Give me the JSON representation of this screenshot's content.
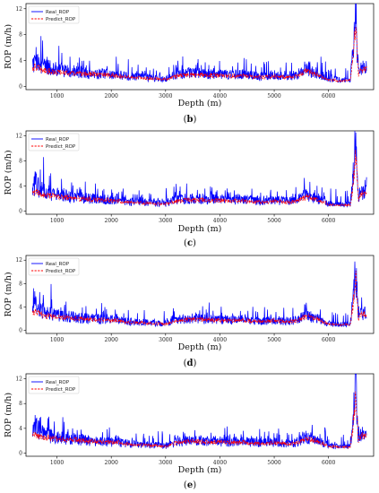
{
  "chart_data": [
    {
      "type": "line",
      "panel": "(b)",
      "xlabel": "Depth (m)",
      "ylabel": "ROP (m/h)",
      "xlim": [
        430,
        6830
      ],
      "ylim": [
        -0.5,
        12.8
      ],
      "xticks": [
        1000,
        2000,
        3000,
        4000,
        5000,
        6000
      ],
      "yticks": [
        0,
        4,
        8,
        12
      ],
      "grid": false,
      "legend_position": "top-left",
      "series": [
        {
          "name": "Real_ROP",
          "color": "#0000ff",
          "style": "solid",
          "x": [
            550,
            600,
            700,
            800,
            900,
            1000,
            1200,
            1400,
            1600,
            1800,
            2000,
            2100,
            2200,
            2400,
            2600,
            2800,
            3000,
            3200,
            3400,
            3600,
            3800,
            4000,
            4200,
            4400,
            4600,
            4800,
            5000,
            5200,
            5400,
            5600,
            5800,
            6000,
            6200,
            6400,
            6450,
            6500,
            6550,
            6600,
            6700
          ],
          "y": [
            3.0,
            4.5,
            3.5,
            3.0,
            2.8,
            2.6,
            2.4,
            2.2,
            2.0,
            1.9,
            1.8,
            2.0,
            1.6,
            1.5,
            1.4,
            1.3,
            1.2,
            1.8,
            2.0,
            2.0,
            1.9,
            1.9,
            1.8,
            1.9,
            1.7,
            1.6,
            1.8,
            1.6,
            1.7,
            2.6,
            2.0,
            1.2,
            1.0,
            1.1,
            5.0,
            11.0,
            2.0,
            3.0,
            3.0
          ]
        },
        {
          "name": "Predict_ROP",
          "color": "#ff0000",
          "style": "dashed",
          "x": [
            550,
            600,
            700,
            800,
            900,
            1000,
            1200,
            1400,
            1600,
            1800,
            2000,
            2100,
            2200,
            2400,
            2600,
            2800,
            3000,
            3200,
            3400,
            3600,
            3800,
            4000,
            4200,
            4400,
            4600,
            4800,
            5000,
            5200,
            5400,
            5600,
            5800,
            6000,
            6200,
            6400,
            6450,
            6500,
            6550,
            6600,
            6700
          ],
          "y": [
            2.8,
            3.0,
            2.6,
            2.4,
            2.3,
            2.2,
            2.1,
            2.0,
            1.9,
            1.8,
            1.7,
            1.7,
            1.5,
            1.4,
            1.3,
            1.2,
            1.1,
            1.6,
            1.8,
            1.8,
            1.7,
            1.7,
            1.6,
            1.7,
            1.5,
            1.4,
            1.6,
            1.4,
            1.5,
            2.4,
            1.8,
            1.0,
            0.9,
            1.0,
            4.0,
            10.0,
            1.8,
            2.6,
            2.6
          ]
        }
      ]
    },
    {
      "type": "line",
      "panel": "(c)",
      "xlabel": "Depth (m)",
      "ylabel": "ROP (m/h)",
      "xlim": [
        430,
        6830
      ],
      "ylim": [
        -0.5,
        12.8
      ],
      "xticks": [
        1000,
        2000,
        3000,
        4000,
        5000,
        6000
      ],
      "yticks": [
        0,
        4,
        8,
        12
      ],
      "grid": false,
      "legend_position": "top-left",
      "series": [
        {
          "name": "Real_ROP",
          "color": "#0000ff",
          "style": "solid",
          "x": [
            550,
            600,
            700,
            800,
            900,
            1000,
            1200,
            1400,
            1600,
            1800,
            2000,
            2100,
            2200,
            2400,
            2600,
            2800,
            3000,
            3200,
            3400,
            3600,
            3800,
            4000,
            4200,
            4400,
            4600,
            4800,
            5000,
            5200,
            5400,
            5600,
            5800,
            6000,
            6200,
            6400,
            6450,
            6500,
            6550,
            6600,
            6700
          ],
          "y": [
            3.0,
            4.5,
            3.5,
            3.0,
            2.8,
            2.6,
            2.4,
            2.2,
            2.0,
            1.9,
            1.8,
            2.0,
            1.6,
            1.5,
            1.4,
            1.3,
            1.2,
            1.8,
            2.0,
            2.0,
            1.9,
            1.9,
            1.8,
            1.9,
            1.7,
            1.6,
            1.8,
            1.6,
            1.7,
            2.6,
            2.0,
            1.2,
            1.0,
            1.1,
            5.0,
            11.0,
            2.0,
            3.0,
            3.0
          ]
        },
        {
          "name": "Predict_ROP",
          "color": "#ff0000",
          "style": "dashed",
          "x": [
            550,
            600,
            700,
            800,
            900,
            1000,
            1200,
            1400,
            1600,
            1800,
            2000,
            2100,
            2200,
            2400,
            2600,
            2800,
            3000,
            3200,
            3400,
            3600,
            3800,
            4000,
            4200,
            4400,
            4600,
            4800,
            5000,
            5200,
            5400,
            5600,
            5800,
            6000,
            6200,
            6400,
            6450,
            6500,
            6550,
            6600,
            6700
          ],
          "y": [
            2.7,
            3.1,
            2.7,
            2.5,
            2.4,
            2.3,
            2.2,
            2.0,
            1.9,
            1.8,
            1.7,
            1.8,
            1.5,
            1.4,
            1.3,
            1.2,
            1.1,
            1.6,
            1.8,
            1.8,
            1.7,
            1.7,
            1.6,
            1.7,
            1.5,
            1.4,
            1.6,
            1.4,
            1.5,
            2.3,
            1.8,
            1.1,
            0.9,
            1.0,
            3.8,
            9.5,
            1.8,
            2.7,
            2.7
          ]
        }
      ]
    },
    {
      "type": "line",
      "panel": "(d)",
      "xlabel": "Depth (m)",
      "ylabel": "ROP (m/h)",
      "xlim": [
        430,
        6830
      ],
      "ylim": [
        -0.5,
        12.8
      ],
      "xticks": [
        1000,
        2000,
        3000,
        4000,
        5000,
        6000
      ],
      "yticks": [
        0,
        4,
        8,
        12
      ],
      "grid": false,
      "legend_position": "top-left",
      "series": [
        {
          "name": "Real_ROP",
          "color": "#0000ff",
          "style": "solid",
          "x": [
            550,
            600,
            700,
            800,
            900,
            1000,
            1200,
            1400,
            1600,
            1800,
            2000,
            2100,
            2200,
            2400,
            2600,
            2800,
            3000,
            3200,
            3400,
            3600,
            3800,
            4000,
            4200,
            4400,
            4600,
            4800,
            5000,
            5200,
            5400,
            5600,
            5800,
            6000,
            6200,
            6400,
            6450,
            6500,
            6550,
            6600,
            6700
          ],
          "y": [
            3.0,
            4.5,
            3.5,
            3.0,
            2.8,
            2.6,
            2.4,
            2.2,
            2.0,
            1.9,
            1.8,
            2.0,
            1.6,
            1.5,
            1.4,
            1.3,
            1.2,
            1.8,
            2.0,
            2.0,
            1.9,
            1.9,
            1.8,
            1.9,
            1.7,
            1.6,
            1.8,
            1.6,
            1.7,
            2.6,
            2.0,
            1.2,
            1.0,
            1.1,
            5.0,
            11.0,
            2.0,
            3.0,
            3.0
          ]
        },
        {
          "name": "Predict_ROP",
          "color": "#ff0000",
          "style": "dashed",
          "x": [
            550,
            600,
            700,
            800,
            900,
            1000,
            1200,
            1400,
            1600,
            1800,
            2000,
            2100,
            2200,
            2400,
            2600,
            2800,
            3000,
            3200,
            3400,
            3600,
            3800,
            4000,
            4200,
            4400,
            4600,
            4800,
            5000,
            5200,
            5400,
            5600,
            5800,
            6000,
            6200,
            6400,
            6450,
            6500,
            6550,
            6600,
            6700
          ],
          "y": [
            2.9,
            3.2,
            2.8,
            2.5,
            2.4,
            2.3,
            2.2,
            2.1,
            1.9,
            1.8,
            1.7,
            1.8,
            1.5,
            1.4,
            1.3,
            1.2,
            1.1,
            1.7,
            1.9,
            1.9,
            1.8,
            1.8,
            1.7,
            1.8,
            1.6,
            1.5,
            1.7,
            1.5,
            1.6,
            2.5,
            1.9,
            1.1,
            1.0,
            1.0,
            4.2,
            10.0,
            1.9,
            2.8,
            2.8
          ]
        }
      ]
    },
    {
      "type": "line",
      "panel": "(e)",
      "xlabel": "Depth (m)",
      "ylabel": "ROP (m/h)",
      "xlim": [
        430,
        6830
      ],
      "ylim": [
        -0.5,
        12.8
      ],
      "xticks": [
        1000,
        2000,
        3000,
        4000,
        5000,
        6000
      ],
      "yticks": [
        0,
        4,
        8,
        12
      ],
      "grid": false,
      "legend_position": "top-left",
      "series": [
        {
          "name": "Real_ROP",
          "color": "#0000ff",
          "style": "solid",
          "x": [
            550,
            600,
            700,
            800,
            900,
            1000,
            1200,
            1400,
            1600,
            1800,
            2000,
            2100,
            2200,
            2400,
            2600,
            2800,
            3000,
            3200,
            3400,
            3600,
            3800,
            4000,
            4200,
            4400,
            4600,
            4800,
            5000,
            5200,
            5400,
            5600,
            5800,
            6000,
            6200,
            6400,
            6450,
            6500,
            6550,
            6600,
            6700
          ],
          "y": [
            3.0,
            4.5,
            3.5,
            3.0,
            2.8,
            2.6,
            2.4,
            2.2,
            2.0,
            1.9,
            1.8,
            2.0,
            1.6,
            1.5,
            1.4,
            1.3,
            1.2,
            1.8,
            2.0,
            2.0,
            1.9,
            1.9,
            1.8,
            1.9,
            1.7,
            1.6,
            1.8,
            1.6,
            1.7,
            2.6,
            2.0,
            1.2,
            1.0,
            1.1,
            5.0,
            11.0,
            2.0,
            3.0,
            3.0
          ]
        },
        {
          "name": "Predict_ROP",
          "color": "#ff0000",
          "style": "dashed",
          "x": [
            550,
            600,
            700,
            800,
            900,
            1000,
            1200,
            1400,
            1600,
            1800,
            2000,
            2100,
            2200,
            2400,
            2600,
            2800,
            3000,
            3200,
            3400,
            3600,
            3800,
            4000,
            4200,
            4400,
            4600,
            4800,
            5000,
            5200,
            5400,
            5600,
            5800,
            6000,
            6200,
            6400,
            6450,
            6500,
            6550,
            6600,
            6700
          ],
          "y": [
            2.8,
            3.0,
            2.7,
            2.5,
            2.4,
            2.3,
            2.2,
            2.1,
            1.9,
            1.8,
            1.7,
            1.8,
            1.5,
            1.4,
            1.3,
            1.2,
            1.1,
            1.7,
            1.9,
            1.9,
            1.8,
            1.8,
            1.7,
            1.8,
            1.6,
            1.5,
            1.7,
            1.5,
            1.6,
            2.4,
            1.9,
            1.1,
            1.0,
            1.0,
            4.0,
            10.0,
            1.9,
            2.8,
            2.8
          ]
        }
      ]
    }
  ]
}
